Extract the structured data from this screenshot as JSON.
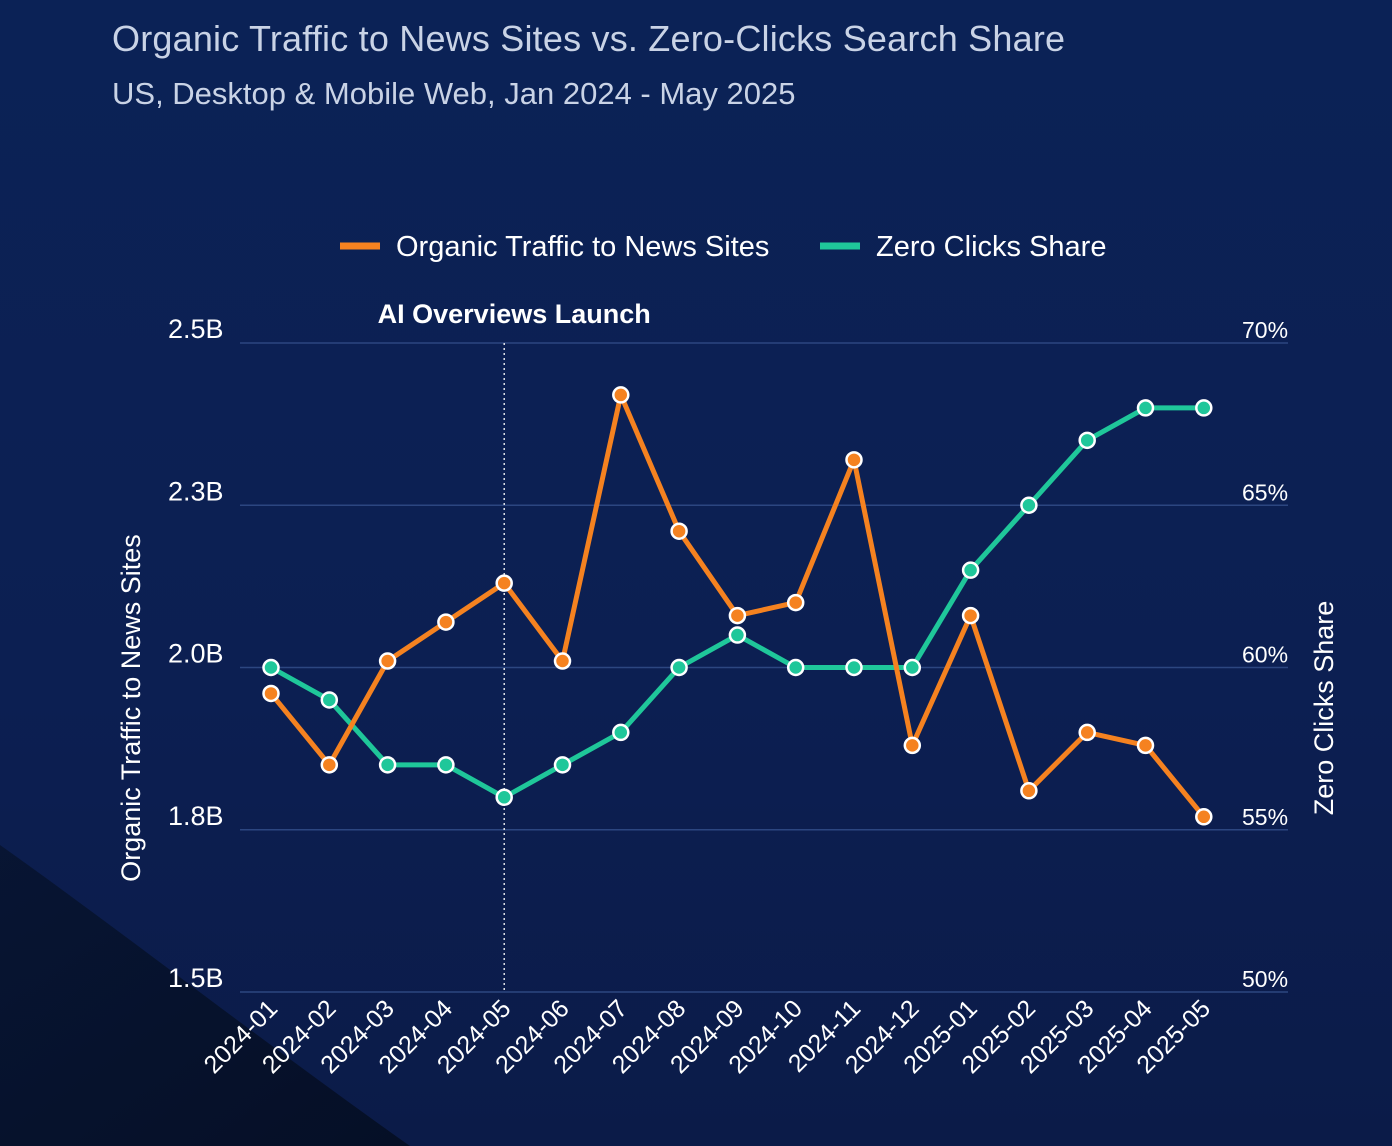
{
  "header": {
    "title": "Organic Traffic to News Sites vs. Zero-Clicks Search Share",
    "subtitle": "US, Desktop & Mobile Web, Jan 2024 - May 2025"
  },
  "colors": {
    "traffic": "#f58220",
    "zero_clicks": "#1fc79a",
    "grid": "#2c4680",
    "background": "#0b2256"
  },
  "chart_data": {
    "type": "line",
    "categories": [
      "2024-01",
      "2024-02",
      "2024-03",
      "2024-04",
      "2024-05",
      "2024-06",
      "2024-07",
      "2024-08",
      "2024-09",
      "2024-10",
      "2024-11",
      "2024-12",
      "2025-01",
      "2025-02",
      "2025-03",
      "2025-04",
      "2025-05"
    ],
    "series": [
      {
        "name": "Organic Traffic to News Sites",
        "axis": "left",
        "values": [
          1.96,
          1.85,
          2.01,
          2.07,
          2.13,
          2.01,
          2.42,
          2.21,
          2.08,
          2.1,
          2.32,
          1.88,
          2.08,
          1.81,
          1.9,
          1.88,
          1.77
        ]
      },
      {
        "name": "Zero Clicks Share",
        "axis": "right",
        "values": [
          60,
          59,
          57,
          57,
          56,
          57,
          58,
          60,
          61,
          60,
          60,
          60,
          63,
          65,
          67,
          68,
          68
        ]
      }
    ],
    "left_axis": {
      "label": "Organic Traffic to News Sites",
      "ylim": [
        1.5,
        2.5
      ],
      "ticks": [
        1.5,
        1.75,
        2.0,
        2.25,
        2.5
      ],
      "tick_labels": [
        "1.5B",
        "1.8B",
        "2.0B",
        "2.3B",
        "2.5B"
      ]
    },
    "right_axis": {
      "label": "Zero Clicks Share",
      "ylim": [
        50,
        70
      ],
      "ticks": [
        50,
        55,
        60,
        65,
        70
      ],
      "tick_labels": [
        "50%",
        "55%",
        "60%",
        "65%",
        "70%"
      ]
    },
    "annotation": {
      "label": "AI Overviews Launch",
      "at_category": "2024-05"
    },
    "legend": [
      "Organic Traffic to News Sites",
      "Zero Clicks Share"
    ],
    "legend_position": "top-center",
    "grid": true
  }
}
